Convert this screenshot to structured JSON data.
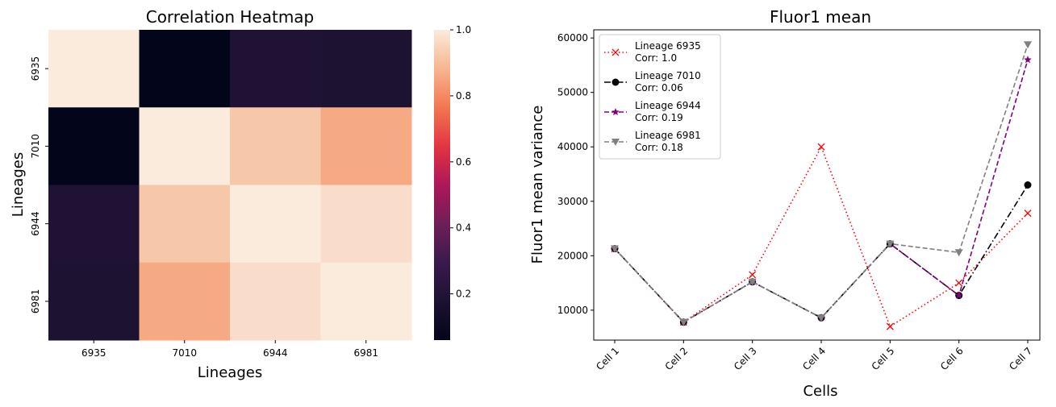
{
  "chart_data": [
    {
      "type": "heatmap",
      "title": "Correlation Heatmap",
      "xlabel": "Lineages",
      "ylabel": "Lineages",
      "x_categories": [
        "6935",
        "7010",
        "6944",
        "6981"
      ],
      "y_categories": [
        "6935",
        "7010",
        "6944",
        "6981"
      ],
      "values": [
        [
          1.0,
          0.06,
          0.19,
          0.18
        ],
        [
          0.06,
          1.0,
          0.92,
          0.86
        ],
        [
          0.19,
          0.92,
          1.0,
          0.97
        ],
        [
          0.18,
          0.86,
          0.97,
          1.0
        ]
      ],
      "colorbar": {
        "range": [
          0.06,
          1.0
        ],
        "ticks": [
          0.2,
          0.4,
          0.6,
          0.8,
          1.0
        ],
        "tick_labels": [
          "0.2",
          "0.4",
          "0.6",
          "0.8",
          "1.0"
        ],
        "colormap": "rocket"
      }
    },
    {
      "type": "line",
      "title": "Fluor1 mean",
      "xlabel": "Cells",
      "ylabel": "Fluor1 mean variance",
      "categories": [
        "Cell 1",
        "Cell 2",
        "Cell 3",
        "Cell 4",
        "Cell 5",
        "Cell 6",
        "Cell 7"
      ],
      "ylim": [
        4500,
        61500
      ],
      "yticks": [
        10000,
        20000,
        30000,
        40000,
        50000,
        60000
      ],
      "ytick_labels": [
        "10000",
        "20000",
        "30000",
        "40000",
        "50000",
        "60000"
      ],
      "legend_position": "top-left",
      "grid": false,
      "series": [
        {
          "name": "Lineage 6935",
          "annotation": "Corr: 1.0",
          "color": "#ff0000",
          "dash": "dotted",
          "marker": "x",
          "values": [
            21300,
            7800,
            16500,
            40000,
            7000,
            15000,
            27800
          ]
        },
        {
          "name": "Lineage 7010",
          "annotation": "Corr: 0.06",
          "color": "#000000",
          "dash": "dashdot",
          "marker": "circle",
          "values": [
            21300,
            7800,
            15200,
            8600,
            22200,
            12700,
            33000
          ]
        },
        {
          "name": "Lineage 6944",
          "annotation": "Corr: 0.19",
          "color": "#800080",
          "dash": "dashed",
          "marker": "star",
          "values": [
            21300,
            7800,
            15200,
            8600,
            22200,
            12700,
            56000
          ]
        },
        {
          "name": "Lineage 6981",
          "annotation": "Corr: 0.18",
          "color": "#808080",
          "dash": "dashed",
          "marker": "triangle-down",
          "values": [
            21300,
            7800,
            15200,
            8600,
            22200,
            20600,
            58800
          ]
        }
      ]
    }
  ]
}
